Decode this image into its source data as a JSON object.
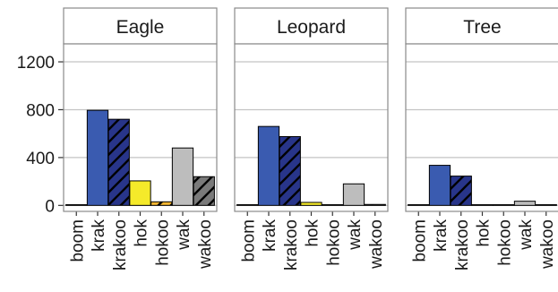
{
  "chart_data": {
    "type": "bar",
    "title": "",
    "xlabel": "",
    "ylabel": "",
    "ylim": [
      -50,
      1350
    ],
    "yticks": [
      0,
      400,
      800,
      1200
    ],
    "grid": true,
    "facets": [
      "Eagle",
      "Leopard",
      "Tree"
    ],
    "categories": [
      "boom",
      "krak",
      "krakoo",
      "hok",
      "hokoo",
      "wak",
      "wakoo"
    ],
    "fills": {
      "boom": "#3a5bb0",
      "krak": "#3a5bb0",
      "krakoo": "#28358a",
      "hok": "#f5ea2a",
      "hokoo": "#f2b531",
      "wak": "#bdbdbd",
      "wakoo": "#7a7a7a"
    },
    "hatched": [
      "krakoo",
      "hokoo",
      "wakoo"
    ],
    "series": [
      {
        "facet": "Eagle",
        "values": [
          0,
          795,
          720,
          205,
          30,
          480,
          240
        ]
      },
      {
        "facet": "Leopard",
        "values": [
          5,
          660,
          575,
          25,
          0,
          180,
          8
        ]
      },
      {
        "facet": "Tree",
        "values": [
          5,
          335,
          245,
          5,
          0,
          35,
          5
        ]
      }
    ]
  }
}
